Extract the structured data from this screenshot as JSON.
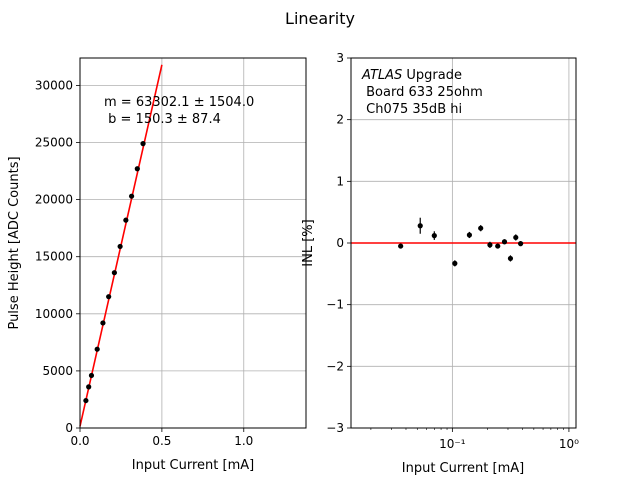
{
  "figure_title": "Linearity",
  "colors": {
    "fit_line": "#ff0000",
    "points": "#000000",
    "grid": "#b0b0b0",
    "axes": "#000000"
  },
  "chart_data": [
    {
      "type": "scatter",
      "name": "pulse-height",
      "xlabel": "Input Current [mA]",
      "ylabel": "Pulse Height [ADC Counts]",
      "xlim": [
        0,
        1.38
      ],
      "ylim": [
        0,
        32400
      ],
      "xscale": "linear",
      "grid": true,
      "xticks": [
        0,
        0.5,
        1.0
      ],
      "xtick_labels": [
        "0.0",
        "0.5",
        "1.0"
      ],
      "yticks": [
        0,
        5000,
        10000,
        15000,
        20000,
        25000,
        30000
      ],
      "ytick_labels": [
        "0",
        "5000",
        "10000",
        "15000",
        "20000",
        "25000",
        "30000"
      ],
      "x": [
        0.036,
        0.053,
        0.07,
        0.105,
        0.14,
        0.175,
        0.21,
        0.245,
        0.28,
        0.315,
        0.35,
        0.385
      ],
      "y": [
        2400,
        3600,
        4600,
        6900,
        9200,
        11500,
        13600,
        15900,
        18200,
        20300,
        22700,
        24900
      ],
      "fit": {
        "slope": 63302.1,
        "intercept": 150.3,
        "x_range": [
          0,
          0.5
        ]
      },
      "annotation": [
        "m = 63302.1 ± 1504.0",
        " b = 150.3 ± 87.4"
      ]
    },
    {
      "type": "scatter",
      "name": "inl",
      "xlabel": "Input Current [mA]",
      "ylabel": "INL [%]",
      "xlim": [
        0.0135,
        1.15
      ],
      "ylim": [
        -3,
        3
      ],
      "xscale": "log",
      "grid": true,
      "xticks": [
        0.1,
        1
      ],
      "xtick_labels": [
        "10⁻¹",
        "10⁰"
      ],
      "minor_xticks": [
        0.02,
        0.03,
        0.04,
        0.05,
        0.06,
        0.07,
        0.08,
        0.09,
        0.2,
        0.3,
        0.4,
        0.5,
        0.6,
        0.7,
        0.8,
        0.9
      ],
      "yticks": [
        -3,
        -2,
        -1,
        0,
        1,
        2,
        3
      ],
      "ytick_labels": [
        "−3",
        "−2",
        "−1",
        "0",
        "1",
        "2",
        "3"
      ],
      "reference_line": 0,
      "x": [
        0.036,
        0.053,
        0.07,
        0.105,
        0.14,
        0.175,
        0.21,
        0.245,
        0.28,
        0.315,
        0.35,
        0.385
      ],
      "y": [
        -0.05,
        0.28,
        0.12,
        -0.33,
        0.13,
        0.24,
        -0.03,
        -0.05,
        0.02,
        -0.25,
        0.09,
        -0.01
      ],
      "yerr": [
        0.04,
        0.13,
        0.07,
        0.05,
        0.05,
        0.05,
        0.05,
        0.04,
        0.04,
        0.05,
        0.05,
        0.04
      ],
      "annotation_italic": "ATLAS",
      "annotation": [
        " Upgrade",
        " Board 633 25ohm",
        " Ch075 35dB hi"
      ]
    }
  ]
}
